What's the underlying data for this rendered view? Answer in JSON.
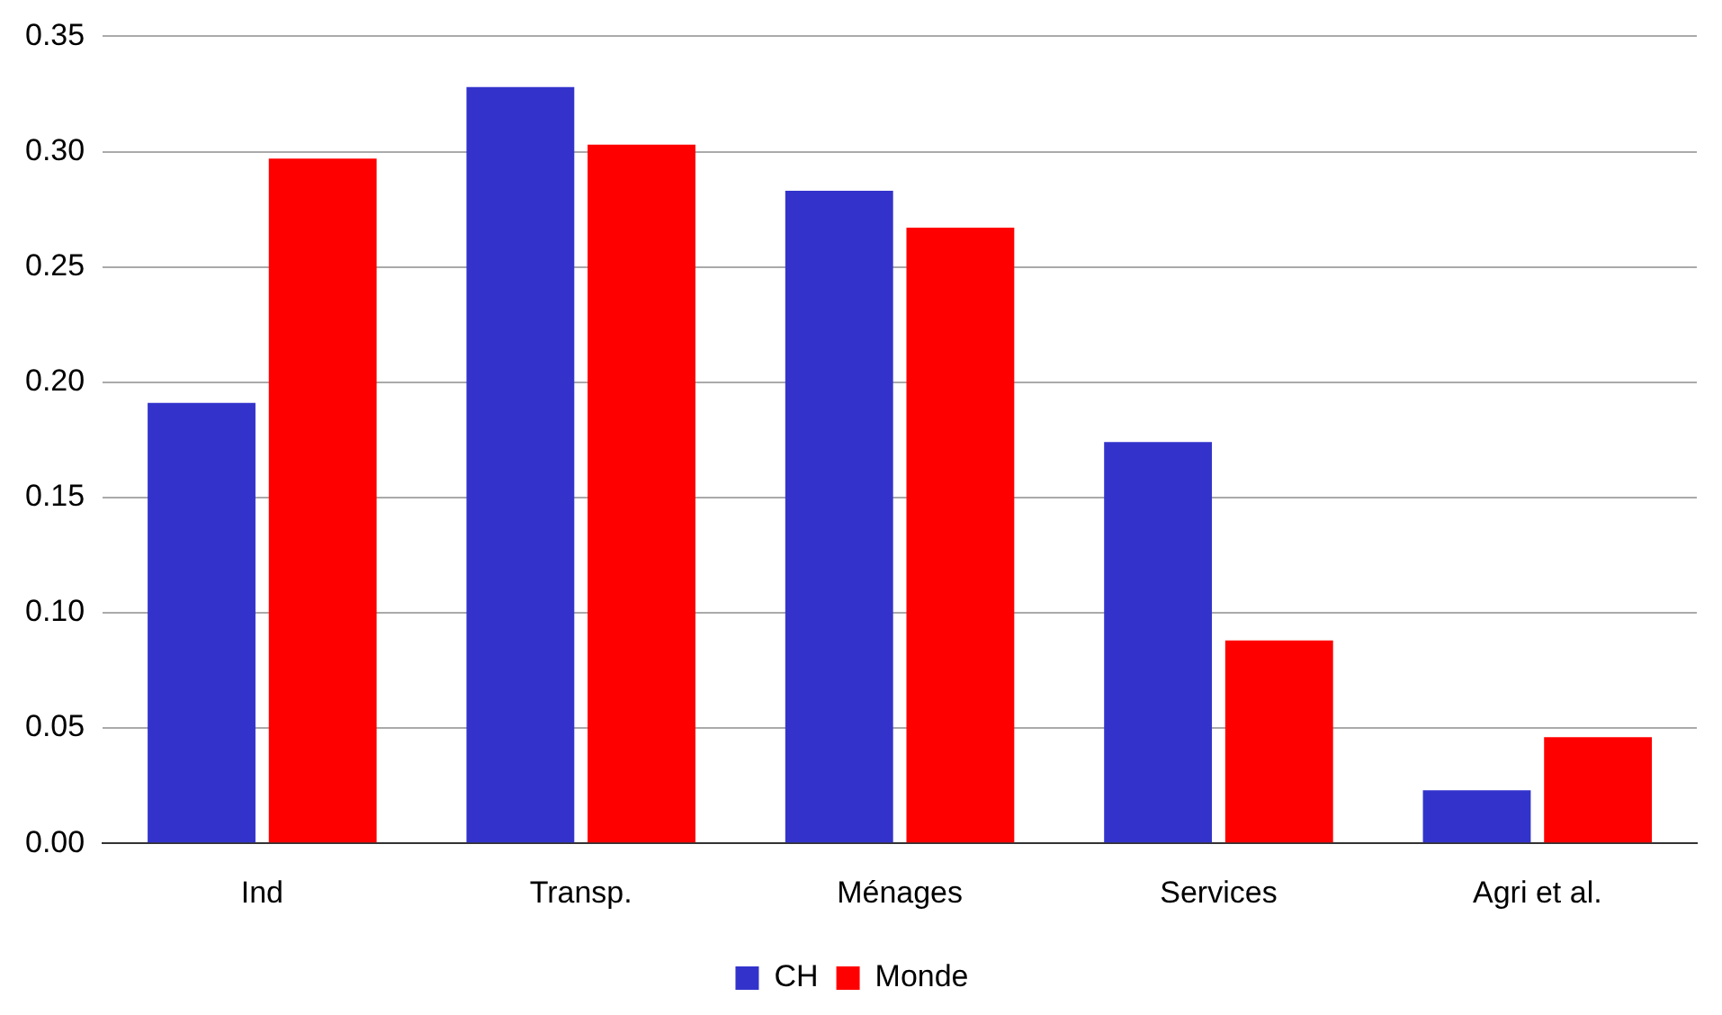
{
  "chart_data": {
    "type": "bar",
    "categories": [
      "Ind",
      "Transp.",
      "Ménages",
      "Services",
      "Agri et al."
    ],
    "series": [
      {
        "name": "CH",
        "color": "#3333cc",
        "values": [
          0.191,
          0.328,
          0.283,
          0.174,
          0.023
        ]
      },
      {
        "name": "Monde",
        "color": "#ff0000",
        "values": [
          0.297,
          0.303,
          0.267,
          0.088,
          0.046
        ]
      }
    ],
    "ylim": [
      0,
      0.35
    ],
    "yticks": [
      {
        "value": 0,
        "label": "0.00"
      },
      {
        "value": 0.05,
        "label": "0.05"
      },
      {
        "value": 0.1,
        "label": "0.10"
      },
      {
        "value": 0.15,
        "label": "0.15"
      },
      {
        "value": 0.2,
        "label": "0.20"
      },
      {
        "value": 0.25,
        "label": "0.25"
      },
      {
        "value": 0.3,
        "label": "0.30"
      },
      {
        "value": 0.35,
        "label": "0.35"
      }
    ],
    "grid": "y",
    "legend": "bottom"
  }
}
